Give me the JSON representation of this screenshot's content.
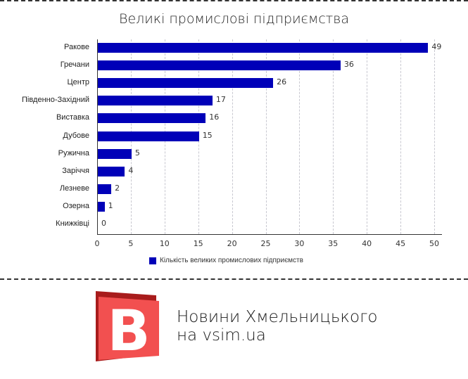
{
  "chart_data": {
    "type": "bar",
    "orientation": "horizontal",
    "title": "Великі промислові підприємства",
    "categories": [
      "Ракове",
      "Гречани",
      "Центр",
      "Південно-Західний",
      "Виставка",
      "Дубове",
      "Ружична",
      "Заріччя",
      "Лезневе",
      "Озерна",
      "Книжківці"
    ],
    "series": [
      {
        "name": "Кількість великих промислових підприємств",
        "color": "#0000b8",
        "values": [
          49,
          36,
          26,
          17,
          16,
          15,
          5,
          4,
          2,
          1,
          0
        ]
      }
    ],
    "xlabel": "",
    "ylabel": "",
    "xlim": [
      0,
      50
    ],
    "xticks": [
      "0",
      "5",
      "10",
      "15",
      "20",
      "25",
      "30",
      "35",
      "40",
      "45",
      "50"
    ],
    "grid": true,
    "legend_position": "bottom",
    "data_labels": true
  },
  "chart": {
    "title": "Великі промислові підприємства",
    "legend_label": "Кількість великих промислових підприємств",
    "rows": [
      {
        "label": "Ракове",
        "value": "49"
      },
      {
        "label": "Гречани",
        "value": "36"
      },
      {
        "label": "Центр",
        "value": "26"
      },
      {
        "label": "Південно-Західний",
        "value": "17"
      },
      {
        "label": "Виставка",
        "value": "16"
      },
      {
        "label": "Дубове",
        "value": "15"
      },
      {
        "label": "Ружична",
        "value": "5"
      },
      {
        "label": "Заріччя",
        "value": "4"
      },
      {
        "label": "Лезневе",
        "value": "2"
      },
      {
        "label": "Озерна",
        "value": "1"
      },
      {
        "label": "Книжківці",
        "value": "0"
      }
    ],
    "ticks": [
      "0",
      "5",
      "10",
      "15",
      "20",
      "25",
      "30",
      "35",
      "40",
      "45",
      "50"
    ]
  },
  "branding": {
    "logo_letter": "B",
    "line1": "Новини Хмельницького",
    "line2": "на vsim.ua",
    "logo_colors": {
      "front": "#f25050",
      "back": "#a81c1c",
      "letter": "#ffffff"
    }
  }
}
